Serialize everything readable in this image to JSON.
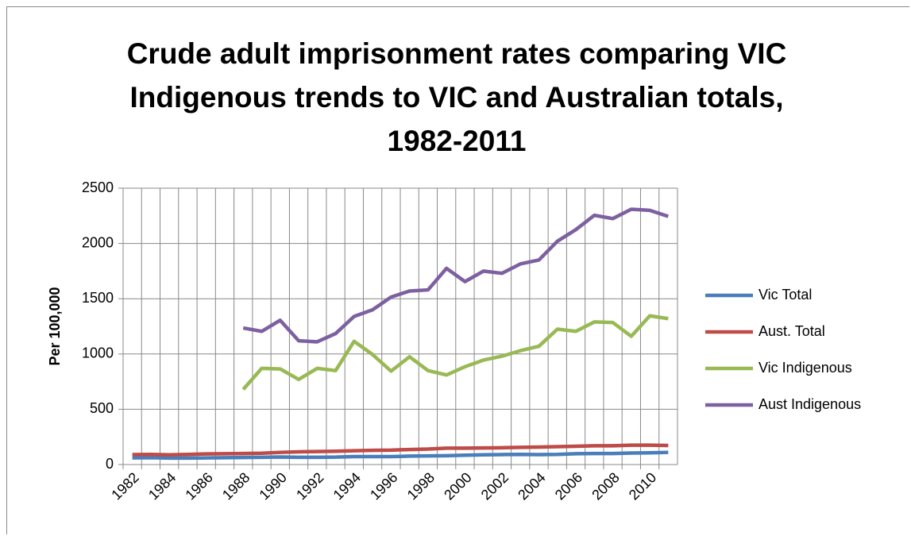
{
  "chart_data": {
    "type": "line",
    "title": "Crude adult imprisonment rates comparing VIC Indigenous trends to VIC and Australian totals, 1982-2011",
    "y_label": "Per 100,000",
    "categories": [
      "1982",
      null,
      "1984",
      null,
      "1986",
      null,
      "1988",
      null,
      "1990",
      null,
      "1992",
      null,
      "1994",
      null,
      "1996",
      null,
      "1998",
      null,
      "2000",
      null,
      "2002",
      null,
      "2004",
      null,
      "2006",
      null,
      "2008",
      null,
      "2010",
      null
    ],
    "ylim": [
      0,
      2500
    ],
    "yticks": [
      0,
      500,
      1000,
      1500,
      2000,
      2500
    ],
    "grid": true,
    "legend": "right",
    "series": [
      {
        "name": "Vic Total",
        "color": "#4a7ebb",
        "values": [
          60,
          62,
          58,
          58,
          60,
          62,
          64,
          66,
          68,
          66,
          66,
          67,
          72,
          72,
          72,
          76,
          78,
          80,
          84,
          88,
          90,
          92,
          90,
          92,
          98,
          100,
          100,
          104,
          106,
          110
        ]
      },
      {
        "name": "Aust. Total",
        "color": "#be4b48",
        "values": [
          90,
          92,
          88,
          92,
          96,
          98,
          100,
          102,
          110,
          115,
          118,
          120,
          125,
          128,
          130,
          136,
          140,
          148,
          148,
          150,
          152,
          155,
          158,
          162,
          165,
          170,
          170,
          175,
          175,
          172
        ]
      },
      {
        "name": "Vic Indigenous",
        "color": "#98b954",
        "values": [
          null,
          null,
          null,
          null,
          null,
          null,
          680,
          870,
          865,
          770,
          870,
          850,
          1115,
          995,
          845,
          975,
          850,
          810,
          885,
          945,
          980,
          1030,
          1070,
          1225,
          1205,
          1290,
          1285,
          1160,
          1345,
          1320
        ]
      },
      {
        "name": "Aust Indigenous",
        "color": "#7d60a0",
        "values": [
          null,
          null,
          null,
          null,
          null,
          null,
          1235,
          1205,
          1305,
          1120,
          1110,
          1185,
          1340,
          1400,
          1515,
          1570,
          1580,
          1775,
          1655,
          1750,
          1730,
          1815,
          1850,
          2020,
          2125,
          2255,
          2225,
          2310,
          2300,
          2245
        ]
      }
    ]
  }
}
